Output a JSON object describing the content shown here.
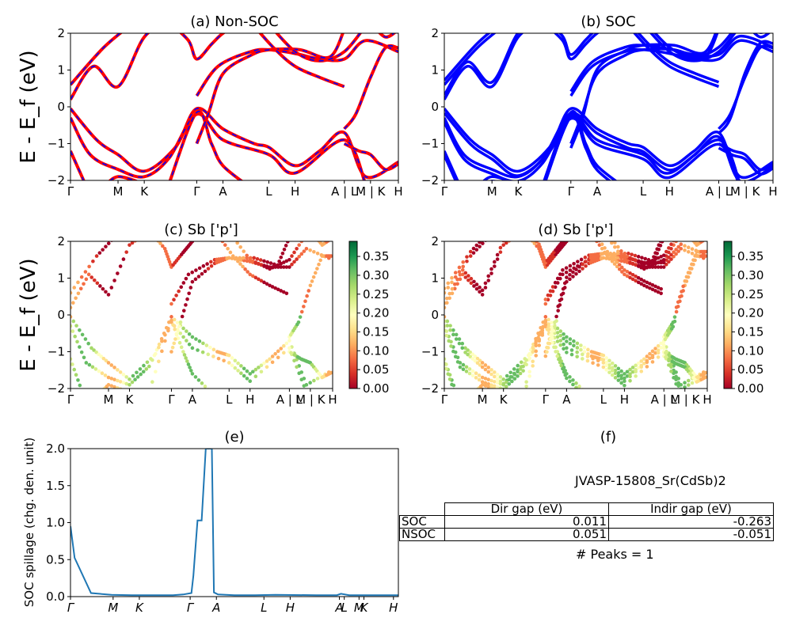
{
  "chart_data": [
    {
      "id": "a",
      "type": "line",
      "title": "(a) Non-SOC",
      "ylabel": "E - E_f (eV)",
      "ylim": [
        -2,
        2
      ],
      "yticks": [
        "−2",
        "−1",
        "0",
        "1",
        "2"
      ],
      "xtick_labels": [
        "Γ",
        "M",
        "K",
        "Γ",
        "A",
        "L",
        "H",
        "A | L",
        "M | K",
        "H"
      ],
      "line_color": "#ff0000",
      "overlay_color": "#0000ff",
      "description_series": [
        {
          "values": [
            0.2,
            0.6,
            1.2,
            1.0,
            0.6,
            1.6,
            2.0
          ]
        },
        {
          "values": [
            -0.05,
            -0.6,
            -1.2,
            -1.5,
            -1.7,
            -1.9,
            -1.5
          ]
        }
      ]
    },
    {
      "id": "b",
      "type": "line",
      "title": "(b) SOC",
      "ylim": [
        -2,
        2
      ],
      "yticks": [
        "−2",
        "−1",
        "0",
        "1",
        "2"
      ],
      "xtick_labels": [
        "Γ",
        "M",
        "K",
        "Γ",
        "A",
        "L",
        "H",
        "A | L",
        "M | K",
        "H"
      ],
      "line_color": "#0000ff"
    },
    {
      "id": "c",
      "type": "scatter",
      "title": "(c)  Sb ['p']",
      "ylabel": "E - E_f (eV)",
      "ylim": [
        -2,
        2
      ],
      "yticks": [
        "−2",
        "−1",
        "0",
        "1",
        "2"
      ],
      "xtick_labels": [
        "Γ",
        "M",
        "K",
        "Γ",
        "A",
        "L",
        "H",
        "A | L",
        "M | K",
        "H"
      ],
      "colorbar_ticks": [
        "0.00",
        "0.05",
        "0.10",
        "0.15",
        "0.20",
        "0.25",
        "0.30",
        "0.35"
      ],
      "colorbar_range": [
        0,
        0.39
      ]
    },
    {
      "id": "d",
      "type": "scatter",
      "title": "(d) Sb ['p']",
      "ylim": [
        -2,
        2
      ],
      "yticks": [
        "−2",
        "−1",
        "0",
        "1",
        "2"
      ],
      "xtick_labels": [
        "Γ",
        "M",
        "K",
        "Γ",
        "A",
        "L",
        "H",
        "A | L",
        "M | K",
        "H"
      ],
      "colorbar_ticks": [
        "0.00",
        "0.05",
        "0.10",
        "0.15",
        "0.20",
        "0.25",
        "0.30",
        "0.35"
      ],
      "colorbar_range": [
        0,
        0.39
      ]
    },
    {
      "id": "e",
      "type": "line",
      "title": "(e)",
      "ylabel": "SOC spillage (chg. den. unit)",
      "ylim": [
        0,
        2.1
      ],
      "yticks": [
        "0.0",
        "0.5",
        "1.0",
        "1.5",
        "2.0"
      ],
      "xtick_labels": [
        "Γ",
        "M",
        "K",
        "Γ",
        "A",
        "L",
        "H",
        "A",
        "L",
        "M",
        "K",
        "H"
      ],
      "line_color": "#1f77b4",
      "x": [
        0,
        0.02,
        0.1,
        0.2,
        0.3,
        0.4,
        0.5,
        0.55,
        0.59,
        0.6,
        0.605,
        0.62,
        0.64,
        0.66,
        0.69,
        0.7,
        0.72,
        0.8,
        0.9,
        1.0,
        1.2,
        1.3,
        1.32,
        1.36,
        1.5,
        1.6
      ],
      "values": [
        1.0,
        0.55,
        0.05,
        0.025,
        0.02,
        0.02,
        0.02,
        0.03,
        0.05,
        0.3,
        0.5,
        1.08,
        1.08,
        2.1,
        2.1,
        0.06,
        0.03,
        0.02,
        0.02,
        0.025,
        0.02,
        0.02,
        0.04,
        0.02,
        0.02,
        0.02
      ]
    }
  ],
  "panel_f": {
    "title": "(f)",
    "material": "JVASP-15808_Sr(CdSb)2",
    "col1": "Dir gap (eV)",
    "col2": "Indir gap (eV)",
    "rows": [
      {
        "label": "SOC",
        "dir": "0.011",
        "indir": "-0.263"
      },
      {
        "label": "NSOC",
        "dir": "0.051",
        "indir": "-0.051"
      }
    ],
    "peaks": "# Peaks = 1"
  }
}
